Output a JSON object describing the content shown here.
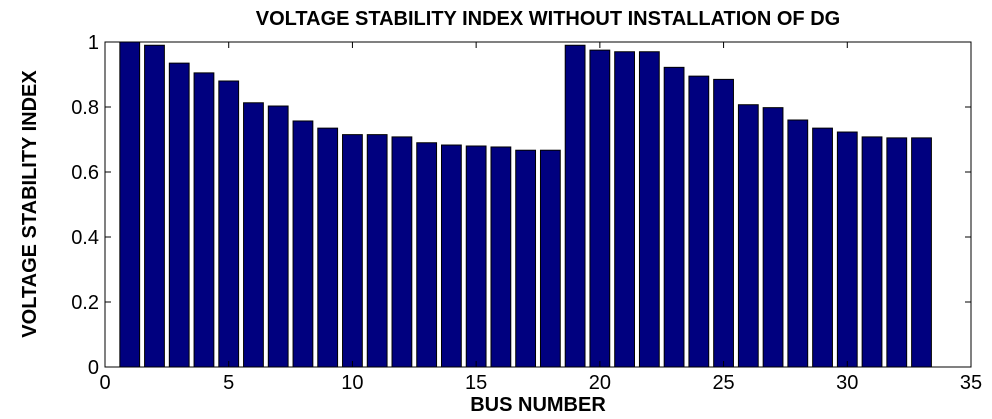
{
  "chart_data": {
    "type": "bar",
    "title": "VOLTAGE STABILITY INDEX WITHOUT INSTALLATION OF DG",
    "xlabel": "BUS NUMBER",
    "ylabel": "VOLTAGE STABILITY INDEX",
    "x": [
      1,
      2,
      3,
      4,
      5,
      6,
      7,
      8,
      9,
      10,
      11,
      12,
      13,
      14,
      15,
      16,
      17,
      18,
      19,
      20,
      21,
      22,
      23,
      24,
      25,
      26,
      27,
      28,
      29,
      30,
      31,
      32,
      33
    ],
    "values": [
      1.0,
      0.99,
      0.935,
      0.905,
      0.88,
      0.813,
      0.803,
      0.757,
      0.735,
      0.715,
      0.715,
      0.708,
      0.69,
      0.683,
      0.68,
      0.677,
      0.667,
      0.667,
      0.99,
      0.975,
      0.97,
      0.97,
      0.922,
      0.895,
      0.885,
      0.807,
      0.798,
      0.76,
      0.735,
      0.723,
      0.708,
      0.705,
      0.705
    ],
    "xlim": [
      0,
      35
    ],
    "ylim": [
      0,
      1
    ],
    "xticks": [
      0,
      5,
      10,
      15,
      20,
      25,
      30,
      35
    ],
    "yticks": [
      0,
      0.2,
      0.4,
      0.6,
      0.8,
      1
    ],
    "ytick_labels": [
      "0",
      "0.2",
      "0.4",
      "0.6",
      "0.8",
      "1"
    ],
    "bar_color": "#00007F",
    "grid": false
  }
}
